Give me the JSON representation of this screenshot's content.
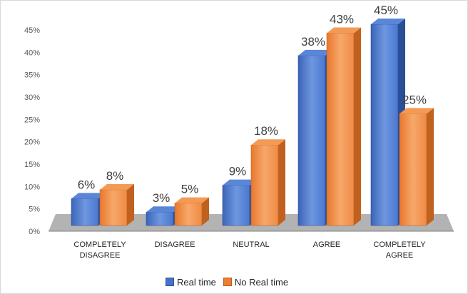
{
  "chart_data": {
    "type": "bar",
    "categories": [
      "COMPLETELY\nDISAGREE",
      "DISAGREE",
      "NEUTRAL",
      "AGREE",
      "COMPLETELY\nAGREE"
    ],
    "series": [
      {
        "name": "Real time",
        "values": [
          6,
          3,
          9,
          38,
          45
        ],
        "labels": [
          "6%",
          "3%",
          "9%",
          "38%",
          "45%"
        ],
        "color": "#4472c4"
      },
      {
        "name": "No Real time",
        "values": [
          8,
          5,
          18,
          43,
          25
        ],
        "labels": [
          "8%",
          "5%",
          "18%",
          "43%",
          "25%"
        ],
        "color": "#ed7d31"
      }
    ],
    "yticks": [
      "0%",
      "5%",
      "10%",
      "15%",
      "20%",
      "25%",
      "30%",
      "35%",
      "40%",
      "45%"
    ],
    "ylim": [
      0,
      45
    ],
    "grid": false,
    "legend_position": "bottom",
    "style": "3d-clustered-column"
  }
}
